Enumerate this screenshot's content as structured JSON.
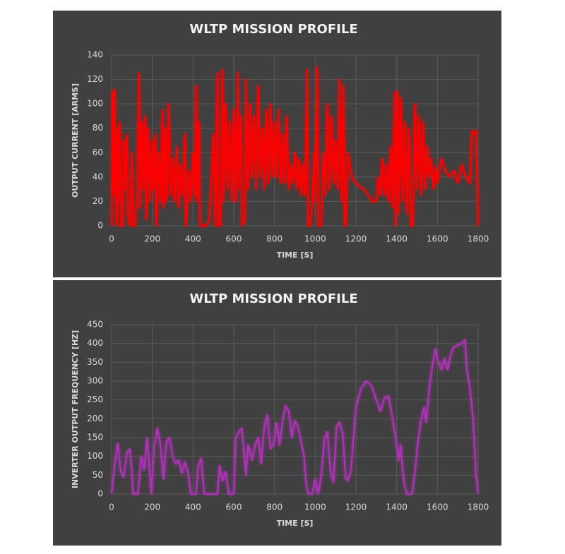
{
  "chart_data": [
    {
      "type": "line",
      "title": "WLTP MISSION PROFILE",
      "xlabel": "TIME [S]",
      "ylabel": "OUTPUT CURRENT [ARMS]",
      "color": "#ff0000",
      "grid": true,
      "xlim": [
        0,
        1800
      ],
      "xticks": [
        0,
        200,
        400,
        600,
        800,
        1000,
        1200,
        1400,
        1600,
        1800
      ],
      "ylim": [
        0,
        140
      ],
      "yticks": [
        0,
        20,
        40,
        60,
        80,
        100,
        120,
        140
      ],
      "x": [
        0,
        5,
        10,
        15,
        20,
        25,
        30,
        35,
        40,
        45,
        55,
        60,
        65,
        75,
        80,
        90,
        100,
        105,
        115,
        125,
        135,
        140,
        150,
        155,
        165,
        170,
        180,
        190,
        200,
        205,
        215,
        220,
        230,
        240,
        250,
        255,
        265,
        270,
        280,
        290,
        300,
        310,
        320,
        330,
        340,
        350,
        360,
        365,
        380,
        390,
        400,
        410,
        415,
        420,
        430,
        435,
        450,
        465,
        480,
        500,
        510,
        520,
        525,
        535,
        545,
        550,
        560,
        570,
        580,
        590,
        600,
        610,
        620,
        625,
        635,
        640,
        655,
        660,
        670,
        680,
        690,
        700,
        710,
        720,
        730,
        740,
        750,
        760,
        770,
        780,
        790,
        800,
        810,
        820,
        830,
        840,
        850,
        860,
        870,
        880,
        890,
        900,
        910,
        920,
        930,
        940,
        950,
        960,
        965,
        975,
        985,
        995,
        1000,
        1010,
        1015,
        1030,
        1040,
        1050,
        1060,
        1070,
        1080,
        1090,
        1100,
        1110,
        1120,
        1130,
        1140,
        1145,
        1150,
        1160,
        1180,
        1200,
        1220,
        1240,
        1260,
        1280,
        1300,
        1310,
        1320,
        1330,
        1340,
        1350,
        1360,
        1370,
        1380,
        1390,
        1395,
        1405,
        1410,
        1420,
        1430,
        1440,
        1450,
        1460,
        1470,
        1480,
        1490,
        1500,
        1510,
        1520,
        1530,
        1540,
        1550,
        1560,
        1570,
        1580,
        1590,
        1600,
        1620,
        1640,
        1660,
        1680,
        1700,
        1720,
        1740,
        1760,
        1770,
        1780,
        1790,
        1800
      ],
      "values": [
        0,
        110,
        25,
        112,
        40,
        0,
        80,
        20,
        85,
        0,
        0,
        70,
        30,
        75,
        10,
        0,
        60,
        0,
        0,
        20,
        125,
        15,
        85,
        30,
        90,
        5,
        80,
        20,
        70,
        30,
        75,
        0,
        60,
        20,
        95,
        15,
        80,
        20,
        100,
        25,
        55,
        20,
        65,
        15,
        50,
        25,
        75,
        0,
        45,
        20,
        60,
        25,
        115,
        20,
        85,
        0,
        0,
        0,
        5,
        75,
        0,
        125,
        0,
        0,
        128,
        20,
        100,
        30,
        85,
        20,
        95,
        20,
        125,
        30,
        90,
        0,
        5,
        120,
        30,
        100,
        40,
        90,
        30,
        115,
        40,
        80,
        30,
        95,
        35,
        100,
        40,
        85,
        40,
        95,
        35,
        75,
        35,
        90,
        30,
        50,
        35,
        60,
        30,
        55,
        25,
        50,
        25,
        128,
        0,
        0,
        15,
        60,
        20,
        130,
        0,
        0,
        60,
        25,
        100,
        30,
        90,
        35,
        70,
        30,
        120,
        20,
        115,
        0,
        0,
        60,
        40,
        35,
        32,
        30,
        25,
        20,
        20,
        40,
        25,
        55,
        25,
        50,
        20,
        65,
        15,
        110,
        0,
        110,
        10,
        105,
        20,
        85,
        10,
        80,
        0,
        0,
        100,
        30,
        90,
        25,
        85,
        30,
        65,
        40,
        55,
        30,
        48,
        35,
        55,
        45,
        40,
        45,
        35,
        50,
        40,
        35,
        78,
        75,
        78,
        0
      ]
    },
    {
      "type": "line",
      "title": "WLTP MISSION PROFILE",
      "xlabel": "TIME [S]",
      "ylabel": "INVERTER OUTPUT FREQUENCY [HZ]",
      "color": "#b030b8",
      "grid": true,
      "xlim": [
        0,
        1800
      ],
      "xticks": [
        0,
        200,
        400,
        600,
        800,
        1000,
        1200,
        1400,
        1600,
        1800
      ],
      "ylim": [
        0,
        450
      ],
      "yticks": [
        0,
        50,
        100,
        150,
        200,
        250,
        300,
        350,
        400,
        450
      ],
      "x": [
        0,
        15,
        30,
        45,
        60,
        75,
        90,
        100,
        105,
        130,
        145,
        160,
        175,
        185,
        195,
        210,
        225,
        240,
        255,
        270,
        285,
        300,
        315,
        330,
        345,
        360,
        375,
        390,
        415,
        425,
        440,
        455,
        520,
        530,
        545,
        560,
        575,
        600,
        610,
        625,
        640,
        650,
        660,
        670,
        690,
        705,
        720,
        735,
        750,
        765,
        780,
        795,
        810,
        825,
        840,
        855,
        870,
        885,
        900,
        915,
        930,
        945,
        955,
        965,
        985,
        1000,
        1015,
        1030,
        1045,
        1060,
        1075,
        1090,
        1105,
        1120,
        1135,
        1150,
        1160,
        1175,
        1200,
        1225,
        1250,
        1275,
        1300,
        1320,
        1340,
        1360,
        1380,
        1395,
        1410,
        1420,
        1430,
        1440,
        1450,
        1475,
        1490,
        1505,
        1520,
        1535,
        1545,
        1560,
        1575,
        1590,
        1605,
        1620,
        1635,
        1650,
        1665,
        1680,
        1700,
        1720,
        1735,
        1745,
        1760,
        1775,
        1790,
        1800
      ],
      "values": [
        0,
        80,
        135,
        60,
        45,
        110,
        120,
        60,
        0,
        0,
        100,
        65,
        150,
        75,
        0,
        130,
        175,
        130,
        40,
        140,
        150,
        100,
        80,
        90,
        55,
        85,
        60,
        0,
        0,
        75,
        95,
        0,
        0,
        75,
        35,
        60,
        0,
        0,
        150,
        165,
        175,
        110,
        50,
        130,
        90,
        130,
        150,
        80,
        180,
        210,
        120,
        130,
        190,
        130,
        195,
        235,
        220,
        150,
        195,
        180,
        140,
        100,
        30,
        0,
        0,
        40,
        0,
        50,
        145,
        165,
        60,
        30,
        180,
        190,
        160,
        40,
        35,
        60,
        230,
        280,
        300,
        290,
        250,
        220,
        255,
        260,
        200,
        150,
        90,
        130,
        60,
        20,
        0,
        0,
        60,
        140,
        200,
        230,
        190,
        280,
        340,
        385,
        350,
        330,
        360,
        330,
        370,
        390,
        395,
        400,
        410,
        330,
        280,
        200,
        50,
        0
      ]
    }
  ]
}
